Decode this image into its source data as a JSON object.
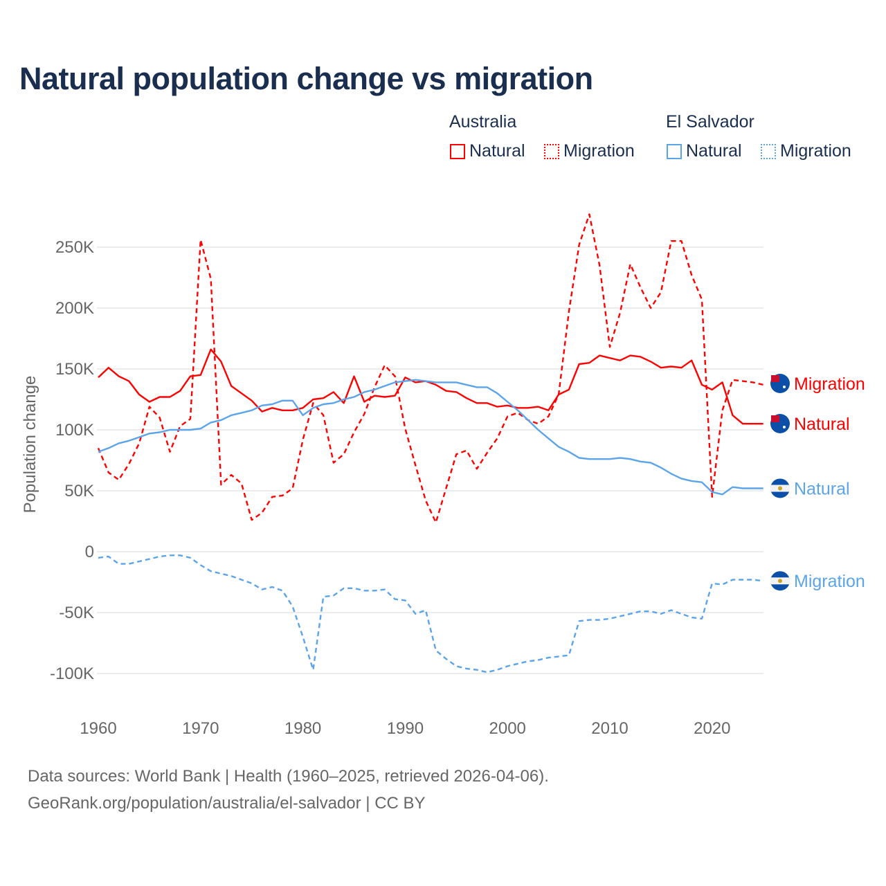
{
  "chart_data": {
    "type": "line",
    "title": "Natural population change vs migration",
    "xlabel": "",
    "ylabel": "Population change",
    "xlim": [
      1960,
      2025
    ],
    "ylim": [
      -125000,
      285000
    ],
    "yticks": [
      250000,
      200000,
      150000,
      100000,
      50000,
      0,
      -50000,
      -100000
    ],
    "ytick_labels": [
      "250K",
      "200K",
      "150K",
      "100K",
      "50K",
      "0",
      "-50K",
      "-100K"
    ],
    "xticks": [
      1960,
      1970,
      1980,
      1990,
      2000,
      2010,
      2020
    ],
    "xtick_labels": [
      "1960",
      "1970",
      "1980",
      "1990",
      "2000",
      "2010",
      "2020"
    ],
    "grid": true,
    "legend_placement": "top-right",
    "legend": {
      "groups": [
        {
          "country": "Australia",
          "items": [
            "Natural",
            "Migration"
          ]
        },
        {
          "country": "El Salvador",
          "items": [
            "Natural",
            "Migration"
          ]
        }
      ]
    },
    "x_start": 1960,
    "series": [
      {
        "name": "Australia Natural",
        "end_label": "Natural",
        "color": "#ff0000",
        "dash": false,
        "values": [
          143,
          151,
          144,
          140,
          129,
          123,
          127,
          127,
          132,
          144,
          145,
          166,
          156,
          136,
          130,
          124,
          115,
          118,
          116,
          116,
          118,
          125,
          126,
          131,
          122,
          144,
          123,
          128,
          127,
          128,
          143,
          139,
          140,
          137,
          132,
          131,
          126,
          122,
          122,
          119,
          120,
          118,
          118,
          119,
          116,
          129,
          133,
          154,
          155,
          161,
          159,
          157,
          161,
          160,
          156,
          151,
          152,
          151,
          157,
          137,
          133,
          139,
          112,
          105,
          105,
          105
        ]
      },
      {
        "name": "Australia Migration",
        "end_label": "Migration",
        "color": "#ff0000",
        "dash": true,
        "values": [
          85,
          65,
          59,
          72,
          89,
          119,
          110,
          82,
          103,
          109,
          256,
          224,
          55,
          63,
          56,
          26,
          32,
          45,
          46,
          52,
          92,
          122,
          112,
          73,
          80,
          98,
          113,
          135,
          153,
          144,
          101,
          71,
          42,
          24,
          52,
          80,
          83,
          68,
          81,
          93,
          111,
          114,
          108,
          105,
          111,
          129,
          197,
          252,
          277,
          235,
          168,
          196,
          236,
          217,
          200,
          213,
          255,
          255,
          227,
          207,
          45,
          116,
          141,
          140,
          139,
          137
        ]
      },
      {
        "name": "El Salvador Natural",
        "end_label": "Natural",
        "color": "#5ba4ea",
        "dash": false,
        "values": [
          82,
          85,
          89,
          91,
          94,
          97,
          98,
          100,
          100,
          100,
          101,
          106,
          108,
          112,
          114,
          116,
          120,
          121,
          124,
          124,
          112,
          118,
          121,
          122,
          125,
          127,
          131,
          133,
          136,
          139,
          140,
          141,
          140,
          139,
          139,
          139,
          137,
          135,
          135,
          130,
          123,
          116,
          108,
          100,
          93,
          86,
          82,
          77,
          76,
          76,
          76,
          77,
          76,
          74,
          73,
          69,
          64,
          60,
          58,
          57,
          49,
          47,
          53,
          52,
          52,
          52
        ]
      },
      {
        "name": "El Salvador Migration",
        "end_label": "Migration",
        "color": "#5ba4ea",
        "dash": true,
        "values": [
          -5,
          -4,
          -10,
          -10,
          -8,
          -6,
          -4,
          -3,
          -3,
          -5,
          -11,
          -16,
          -18,
          -20,
          -23,
          -26,
          -31,
          -29,
          -32,
          -45,
          -70,
          -97,
          -37,
          -36,
          -30,
          -30,
          -32,
          -32,
          -31,
          -39,
          -40,
          -51,
          -48,
          -81,
          -88,
          -94,
          -96,
          -97,
          -99,
          -97,
          -94,
          -92,
          -90,
          -89,
          -87,
          -86,
          -85,
          -57,
          -56,
          -56,
          -55,
          -53,
          -51,
          -49,
          -49,
          -51,
          -48,
          -51,
          -54,
          -55,
          -26,
          -27,
          -23,
          -23,
          -23,
          -24
        ]
      }
    ],
    "value_unit": "thousands"
  },
  "footer": {
    "line1": "Data sources: World Bank | Health (1960–2025, retrieved 2026-04-06).",
    "line2": "GeoRank.org/population/australia/el-salvador | CC BY"
  }
}
